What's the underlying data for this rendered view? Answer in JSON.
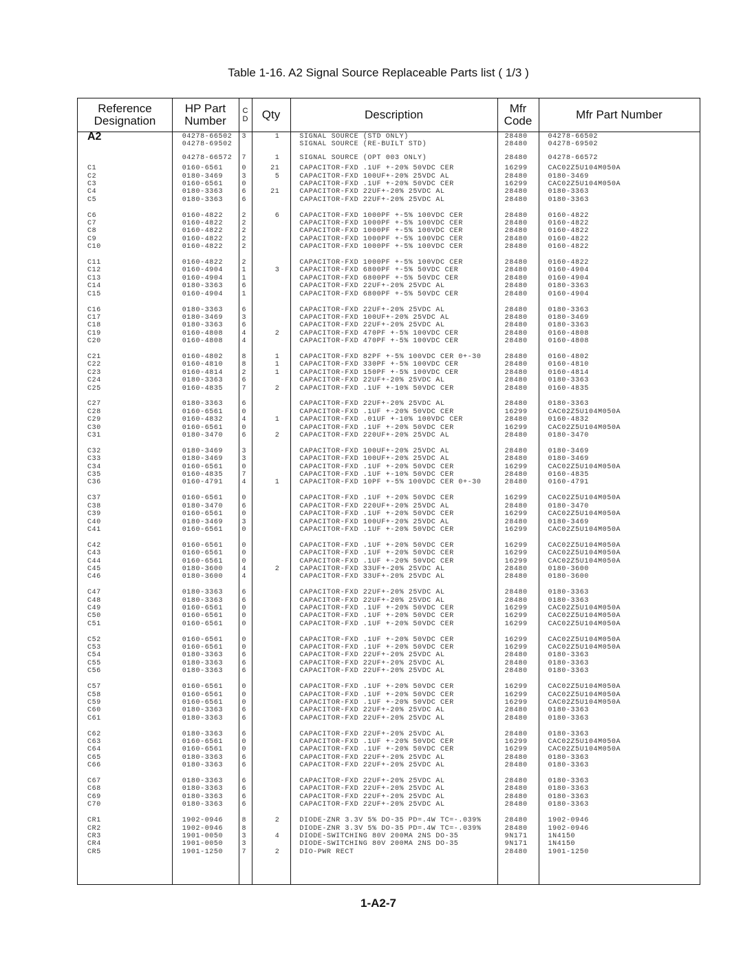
{
  "title": "Table 1-16. A2 Signal Source Replaceable Parts list ( 1/3 )",
  "page_number": "1-A2-7",
  "columns": {
    "ref": "Reference Designation",
    "hp": "HP Part Number",
    "cd": "C D",
    "qty": "Qty",
    "desc": "Description",
    "mfr": "Mfr Code",
    "mfrpn": "Mfr Part Number"
  },
  "groups": [
    [
      [
        "A2",
        "04278-66502",
        "3",
        "1",
        "SIGNAL SOURCE (STD ONLY)",
        "28480",
        "04278-66502"
      ],
      [
        "",
        "04278-69502",
        "",
        "",
        "SIGNAL SOURCE (RE-BUILT STD)",
        "28480",
        "04278-69502"
      ],
      [
        "",
        "04278-66572",
        "7",
        "1",
        "SIGNAL SOURCE (OPT 003 ONLY)",
        "28480",
        "04278-66572"
      ]
    ],
    [
      [
        "C1",
        "0160-6561",
        "0",
        "21",
        "CAPACITOR-FXD .1UF +-20% 50VDC CER",
        "16299",
        "CAC02Z5U104M050A"
      ],
      [
        "C2",
        "0180-3469",
        "3",
        "5",
        "CAPACITOR-FXD 100UF+-20% 25VDC AL",
        "28480",
        "0180-3469"
      ],
      [
        "C3",
        "0160-6561",
        "0",
        "",
        "CAPACITOR-FXD .1UF +-20% 50VDC CER",
        "16299",
        "CAC02Z5U104M050A"
      ],
      [
        "C4",
        "0180-3363",
        "6",
        "21",
        "CAPACITOR-FXD 22UF+-20% 25VDC AL",
        "28480",
        "0180-3363"
      ],
      [
        "C5",
        "0180-3363",
        "6",
        "",
        "CAPACITOR-FXD 22UF+-20% 25VDC AL",
        "28480",
        "0180-3363"
      ]
    ],
    [
      [
        "C6",
        "0160-4822",
        "2",
        "6",
        "CAPACITOR-FXD 1000PF +-5% 100VDC CER",
        "28480",
        "0160-4822"
      ],
      [
        "C7",
        "0160-4822",
        "2",
        "",
        "CAPACITOR-FXD 1000PF +-5% 100VDC CER",
        "28480",
        "0160-4822"
      ],
      [
        "C8",
        "0160-4822",
        "2",
        "",
        "CAPACITOR-FXD 1000PF +-5% 100VDC CER",
        "28480",
        "0160-4822"
      ],
      [
        "C9",
        "0160-4822",
        "2",
        "",
        "CAPACITOR-FXD 1000PF +-5% 100VDC CER",
        "28480",
        "0160-4822"
      ],
      [
        "C10",
        "0160-4822",
        "2",
        "",
        "CAPACITOR-FXD 1000PF +-5% 100VDC CER",
        "28480",
        "0160-4822"
      ]
    ],
    [
      [
        "C11",
        "0160-4822",
        "2",
        "",
        "CAPACITOR-FXD 1000PF +-5% 100VDC CER",
        "28480",
        "0160-4822"
      ],
      [
        "C12",
        "0160-4904",
        "1",
        "3",
        "CAPACITOR-FXD 6800PF +-5% 50VDC CER",
        "28480",
        "0160-4904"
      ],
      [
        "C13",
        "0160-4904",
        "1",
        "",
        "CAPACITOR-FXD 6800PF +-5% 50VDC CER",
        "28480",
        "0160-4904"
      ],
      [
        "C14",
        "0180-3363",
        "6",
        "",
        "CAPACITOR-FXD 22UF+-20% 25VDC AL",
        "28480",
        "0180-3363"
      ],
      [
        "C15",
        "0160-4904",
        "1",
        "",
        "CAPACITOR-FXD 6800PF +-5% 50VDC CER",
        "28480",
        "0160-4904"
      ]
    ],
    [
      [
        "C16",
        "0180-3363",
        "6",
        "",
        "CAPACITOR-FXD 22UF+-20% 25VDC AL",
        "28480",
        "0180-3363"
      ],
      [
        "C17",
        "0180-3469",
        "3",
        "",
        "CAPACITOR-FXD 100UF+-20% 25VDC AL",
        "28480",
        "0180-3469"
      ],
      [
        "C18",
        "0180-3363",
        "6",
        "",
        "CAPACITOR-FXD 22UF+-20% 25VDC AL",
        "28480",
        "0180-3363"
      ],
      [
        "C19",
        "0160-4808",
        "4",
        "2",
        "CAPACITOR-FXD 470PF +-5% 100VDC CER",
        "28480",
        "0160-4808"
      ],
      [
        "C20",
        "0160-4808",
        "4",
        "",
        "CAPACITOR-FXD 470PF +-5% 100VDC CER",
        "28480",
        "0160-4808"
      ]
    ],
    [
      [
        "C21",
        "0160-4802",
        "8",
        "1",
        "CAPACITOR-FXD 82PF +-5% 100VDC CER 0+-30",
        "28480",
        "0160-4802"
      ],
      [
        "C22",
        "0160-4810",
        "8",
        "1",
        "CAPACITOR-FXD 330PF +-5% 100VDC CER",
        "28480",
        "0160-4810"
      ],
      [
        "C23",
        "0160-4814",
        "2",
        "1",
        "CAPACITOR-FXD 150PF +-5% 100VDC CER",
        "28480",
        "0160-4814"
      ],
      [
        "C24",
        "0180-3363",
        "6",
        "",
        "CAPACITOR-FXD 22UF+-20% 25VDC AL",
        "28480",
        "0180-3363"
      ],
      [
        "C25",
        "0160-4835",
        "7",
        "2",
        "CAPACITOR-FXD .1UF +-10% 50VDC CER",
        "28480",
        "0160-4835"
      ]
    ],
    [
      [
        "C27",
        "0180-3363",
        "6",
        "",
        "CAPACITOR-FXD 22UF+-20% 25VDC AL",
        "28480",
        "0180-3363"
      ],
      [
        "C28",
        "0160-6561",
        "0",
        "",
        "CAPACITOR-FXD .1UF +-20% 50VDC CER",
        "16299",
        "CAC02Z5U104M050A"
      ],
      [
        "C29",
        "0160-4832",
        "4",
        "1",
        "CAPACITOR-FXD .01UF +-10% 100VDC CER",
        "28480",
        "0160-4832"
      ],
      [
        "C30",
        "0160-6561",
        "0",
        "",
        "CAPACITOR-FXD .1UF +-20% 50VDC CER",
        "16299",
        "CAC02Z5U104M050A"
      ],
      [
        "C31",
        "0180-3470",
        "6",
        "2",
        "CAPACITOR-FXD 220UF+-20% 25VDC AL",
        "28480",
        "0180-3470"
      ]
    ],
    [
      [
        "C32",
        "0180-3469",
        "3",
        "",
        "CAPACITOR-FXD 100UF+-20% 25VDC AL",
        "28480",
        "0180-3469"
      ],
      [
        "C33",
        "0180-3469",
        "3",
        "",
        "CAPACITOR-FXD 100UF+-20% 25VDC AL",
        "28480",
        "0180-3469"
      ],
      [
        "C34",
        "0160-6561",
        "0",
        "",
        "CAPACITOR-FXD .1UF +-20% 50VDC CER",
        "16299",
        "CAC02Z5U104M050A"
      ],
      [
        "C35",
        "0160-4835",
        "7",
        "",
        "CAPACITOR-FXD .1UF +-10% 50VDC CER",
        "28480",
        "0160-4835"
      ],
      [
        "C36",
        "0160-4791",
        "4",
        "1",
        "CAPACITOR-FXD 10PF +-5% 100VDC CER 0+-30",
        "28480",
        "0160-4791"
      ]
    ],
    [
      [
        "C37",
        "0160-6561",
        "0",
        "",
        "CAPACITOR-FXD .1UF +-20% 50VDC CER",
        "16299",
        "CAC02Z5U104M050A"
      ],
      [
        "C38",
        "0180-3470",
        "6",
        "",
        "CAPACITOR-FXD 220UF+-20% 25VDC AL",
        "28480",
        "0180-3470"
      ],
      [
        "C39",
        "0160-6561",
        "0",
        "",
        "CAPACITOR-FXD .1UF +-20% 50VDC CER",
        "16299",
        "CAC02Z5U104M050A"
      ],
      [
        "C40",
        "0180-3469",
        "3",
        "",
        "CAPACITOR-FXD 100UF+-20% 25VDC AL",
        "28480",
        "0180-3469"
      ],
      [
        "C41",
        "0160-6561",
        "0",
        "",
        "CAPACITOR-FXD .1UF +-20% 50VDC CER",
        "16299",
        "CAC02Z5U104M050A"
      ]
    ],
    [
      [
        "C42",
        "0160-6561",
        "0",
        "",
        "CAPACITOR-FXD .1UF +-20% 50VDC CER",
        "16299",
        "CAC02Z5U104M050A"
      ],
      [
        "C43",
        "0160-6561",
        "0",
        "",
        "CAPACITOR-FXD .1UF +-20% 50VDC CER",
        "16299",
        "CAC02Z5U104M050A"
      ],
      [
        "C44",
        "0160-6561",
        "0",
        "",
        "CAPACITOR-FXD .1UF +-20% 50VDC CER",
        "16299",
        "CAC02Z5U104M050A"
      ],
      [
        "C45",
        "0180-3600",
        "4",
        "2",
        "CAPACITOR-FXD 33UF+-20% 25VDC AL",
        "28480",
        "0180-3600"
      ],
      [
        "C46",
        "0180-3600",
        "4",
        "",
        "CAPACITOR-FXD 33UF+-20% 25VDC AL",
        "28480",
        "0180-3600"
      ]
    ],
    [
      [
        "C47",
        "0180-3363",
        "6",
        "",
        "CAPACITOR-FXD 22UF+-20% 25VDC AL",
        "28480",
        "0180-3363"
      ],
      [
        "C48",
        "0180-3363",
        "6",
        "",
        "CAPACITOR-FXD 22UF+-20% 25VDC AL",
        "28480",
        "0180-3363"
      ],
      [
        "C49",
        "0160-6561",
        "0",
        "",
        "CAPACITOR-FXD .1UF +-20% 50VDC CER",
        "16299",
        "CAC02Z5U104M050A"
      ],
      [
        "C50",
        "0160-6561",
        "0",
        "",
        "CAPACITOR-FXD .1UF +-20% 50VDC CER",
        "16299",
        "CAC02Z5U104M050A"
      ],
      [
        "C51",
        "0160-6561",
        "0",
        "",
        "CAPACITOR-FXD .1UF +-20% 50VDC CER",
        "16299",
        "CAC02Z5U104M050A"
      ]
    ],
    [
      [
        "C52",
        "0160-6561",
        "0",
        "",
        "CAPACITOR-FXD .1UF +-20% 50VDC CER",
        "16299",
        "CAC02Z5U104M050A"
      ],
      [
        "C53",
        "0160-6561",
        "0",
        "",
        "CAPACITOR-FXD .1UF +-20% 50VDC CER",
        "16299",
        "CAC02Z5U104M050A"
      ],
      [
        "C54",
        "0180-3363",
        "6",
        "",
        "CAPACITOR-FXD 22UF+-20% 25VDC AL",
        "28480",
        "0180-3363"
      ],
      [
        "C55",
        "0180-3363",
        "6",
        "",
        "CAPACITOR-FXD 22UF+-20% 25VDC AL",
        "28480",
        "0180-3363"
      ],
      [
        "C56",
        "0180-3363",
        "6",
        "",
        "CAPACITOR-FXD 22UF+-20% 25VDC AL",
        "28480",
        "0180-3363"
      ]
    ],
    [
      [
        "C57",
        "0160-6561",
        "0",
        "",
        "CAPACITOR-FXD .1UF +-20% 50VDC CER",
        "16299",
        "CAC02Z5U104M050A"
      ],
      [
        "C58",
        "0160-6561",
        "0",
        "",
        "CAPACITOR-FXD .1UF +-20% 50VDC CER",
        "16299",
        "CAC02Z5U104M050A"
      ],
      [
        "C59",
        "0160-6561",
        "0",
        "",
        "CAPACITOR-FXD .1UF +-20% 50VDC CER",
        "16299",
        "CAC02Z5U104M050A"
      ],
      [
        "C60",
        "0180-3363",
        "6",
        "",
        "CAPACITOR-FXD 22UF+-20% 25VDC AL",
        "28480",
        "0180-3363"
      ],
      [
        "C61",
        "0180-3363",
        "6",
        "",
        "CAPACITOR-FXD 22UF+-20% 25VDC AL",
        "28480",
        "0180-3363"
      ]
    ],
    [
      [
        "C62",
        "0180-3363",
        "6",
        "",
        "CAPACITOR-FXD 22UF+-20% 25VDC AL",
        "28480",
        "0180-3363"
      ],
      [
        "C63",
        "0160-6561",
        "0",
        "",
        "CAPACITOR-FXD .1UF +-20% 50VDC CER",
        "16299",
        "CAC02Z5U104M050A"
      ],
      [
        "C64",
        "0160-6561",
        "0",
        "",
        "CAPACITOR-FXD .1UF +-20% 50VDC CER",
        "16299",
        "CAC02Z5U104M050A"
      ],
      [
        "C65",
        "0180-3363",
        "6",
        "",
        "CAPACITOR-FXD 22UF+-20% 25VDC AL",
        "28480",
        "0180-3363"
      ],
      [
        "C66",
        "0180-3363",
        "6",
        "",
        "CAPACITOR-FXD 22UF+-20% 25VDC AL",
        "28480",
        "0180-3363"
      ]
    ],
    [
      [
        "C67",
        "0180-3363",
        "6",
        "",
        "CAPACITOR-FXD 22UF+-20% 25VDC AL",
        "28480",
        "0180-3363"
      ],
      [
        "C68",
        "0180-3363",
        "6",
        "",
        "CAPACITOR-FXD 22UF+-20% 25VDC AL",
        "28480",
        "0180-3363"
      ],
      [
        "C69",
        "0180-3363",
        "6",
        "",
        "CAPACITOR-FXD 22UF+-20% 25VDC AL",
        "28480",
        "0180-3363"
      ],
      [
        "C70",
        "0180-3363",
        "6",
        "",
        "CAPACITOR-FXD 22UF+-20% 25VDC AL",
        "28480",
        "0180-3363"
      ]
    ],
    [
      [
        "CR1",
        "1902-0946",
        "8",
        "2",
        "DIODE-ZNR 3.3V 5% DO-35 PD=.4W TC=-.039%",
        "28480",
        "1902-0946"
      ],
      [
        "CR2",
        "1902-0946",
        "8",
        "",
        "DIODE-ZNR 3.3V 5% DO-35 PD=.4W TC=-.039%",
        "28480",
        "1902-0946"
      ],
      [
        "CR3",
        "1901-0050",
        "3",
        "4",
        "DIODE-SWITCHING 80V 200MA 2NS DO-35",
        "9N171",
        "1N4150"
      ],
      [
        "CR4",
        "1901-0050",
        "3",
        "",
        "DIODE-SWITCHING 80V 200MA 2NS DO-35",
        "9N171",
        "1N4150"
      ],
      [
        "CR5",
        "1901-1250",
        "7",
        "2",
        "DIO-PWR RECT",
        "28480",
        "1901-1250"
      ]
    ]
  ]
}
